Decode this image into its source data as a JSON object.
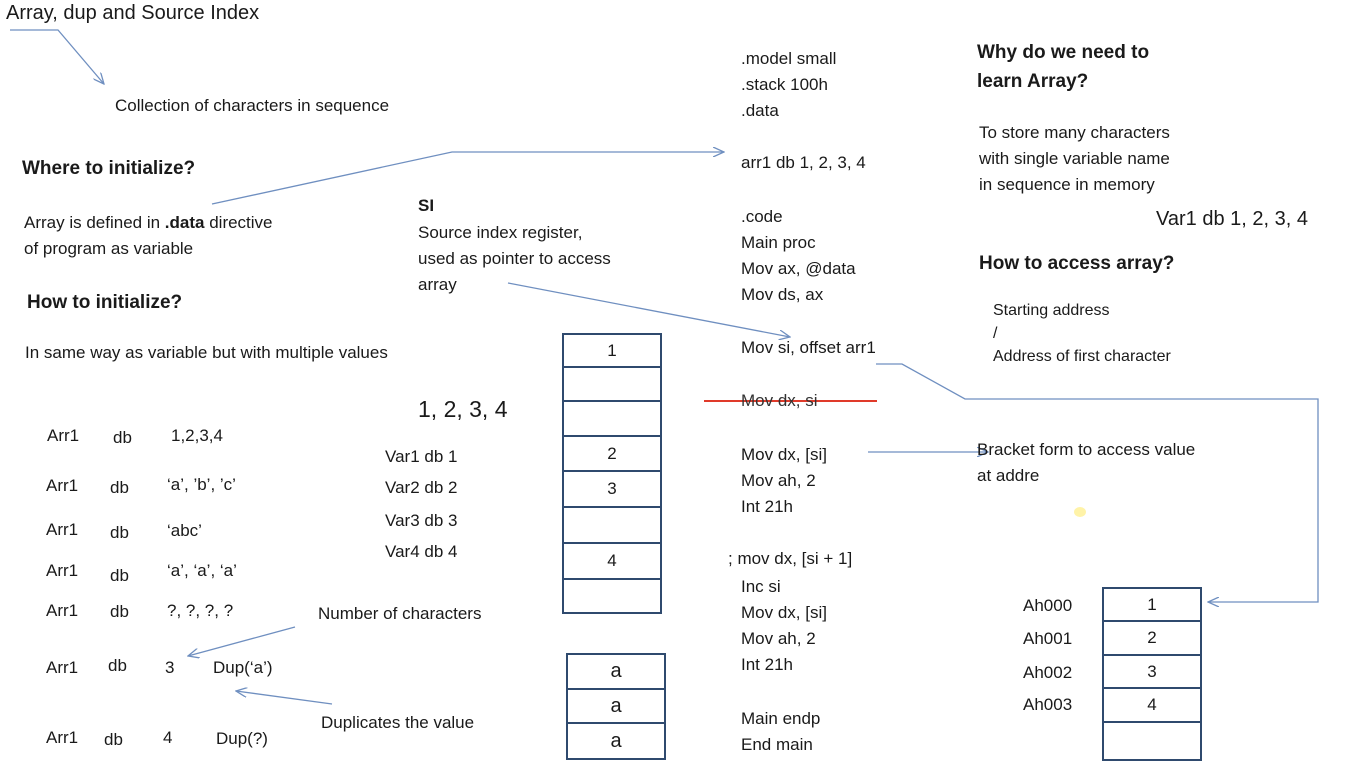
{
  "title": "Array, dup and Source Index",
  "definition": "Collection of characters in sequence",
  "where": {
    "heading": "Where to initialize?",
    "pre": "Array is defined in ",
    "bold": ".data",
    "post": " directive",
    "line2": "of program as variable"
  },
  "how_init": {
    "heading": "How to initialize?",
    "desc": "In same way as variable but with multiple values"
  },
  "examples": [
    {
      "name": "Arr1",
      "kw": "db",
      "val": "1,2,3,4"
    },
    {
      "name": "Arr1",
      "kw": "db",
      "val": "‘a’, ’b’, ’c’"
    },
    {
      "name": "Arr1",
      "kw": "db",
      "val": "‘abc’"
    },
    {
      "name": "Arr1",
      "kw": "db",
      "val": "‘a’, ‘a’, ‘a’"
    },
    {
      "name": "Arr1",
      "kw": "db",
      "val": "?, ?, ?, ?"
    },
    {
      "name": "Arr1",
      "kw": "db",
      "count": "3",
      "dup": "Dup(‘a’)"
    },
    {
      "name": "Arr1",
      "kw": "db",
      "count": "4",
      "dup": "Dup(?)"
    }
  ],
  "si": {
    "label": "SI",
    "desc": "Source index register,\nused as pointer to access\narray"
  },
  "numbers_seq": "1, 2, 3, 4",
  "var_list": [
    "Var1 db 1",
    "Var2 db 2",
    "Var3 db 3",
    "Var4 db 4"
  ],
  "mem_left": [
    "1",
    "",
    "",
    "2",
    "3",
    "",
    "4",
    ""
  ],
  "dup_cells": [
    "a",
    "a",
    "a"
  ],
  "notes": {
    "num_chars": "Number of characters",
    "dup_value": "Duplicates the value"
  },
  "code": {
    "header": ".model small\n.stack 100h\n.data",
    "arr": "arr1 db 1, 2, 3, 4",
    "code_block": ".code\nMain proc\nMov ax, @data\nMov ds, ax",
    "mov_si": "Mov si, offset arr1",
    "struck": "Mov dx, si",
    "print1": "Mov dx, [si]\nMov ah, 2\nInt 21h",
    "comment": "; mov dx, [si + 1]",
    "print2": "Inc si\nMov dx, [si]\nMov ah, 2\nInt 21h",
    "end": "Main endp\nEnd main"
  },
  "why": {
    "heading": "Why do we need to\nlearn Array?",
    "desc": "To store many characters\nwith single variable name\nin sequence in memory",
    "example": "Var1 db 1, 2, 3, 4"
  },
  "access": {
    "heading": "How to access array?",
    "desc": "Starting address\n/\nAddress of first character"
  },
  "bracket_note": "Bracket form to access value\nat addre",
  "memory": {
    "addresses": [
      "Ah000",
      "Ah001",
      "Ah002",
      "Ah003"
    ],
    "values": [
      "1",
      "2",
      "3",
      "4",
      ""
    ]
  },
  "colors": {
    "arrow": "#6f8fc0",
    "strike": "#e03a2a",
    "cell_border": "#2f4a6e"
  }
}
